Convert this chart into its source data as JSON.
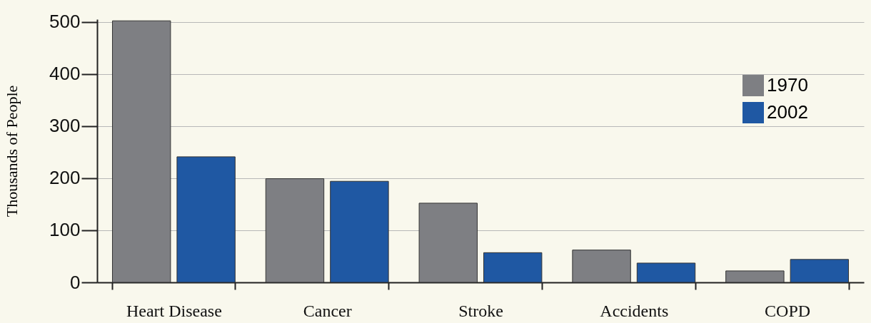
{
  "chart_data": {
    "type": "bar",
    "ylabel": "Thousands of People",
    "categories": [
      "Heart Disease",
      "Cancer",
      "Stroke",
      "Accidents",
      "COPD"
    ],
    "series": [
      {
        "name": "1970",
        "color": "#7e7f83",
        "values": [
          502,
          199,
          152,
          62,
          22
        ]
      },
      {
        "name": "2002",
        "color": "#1f58a3",
        "values": [
          241,
          194,
          57,
          37,
          44
        ]
      }
    ],
    "ylim": [
      0,
      505
    ],
    "yticks": [
      0,
      100,
      200,
      300,
      400,
      500
    ],
    "grid": "y",
    "legend": "top right"
  }
}
